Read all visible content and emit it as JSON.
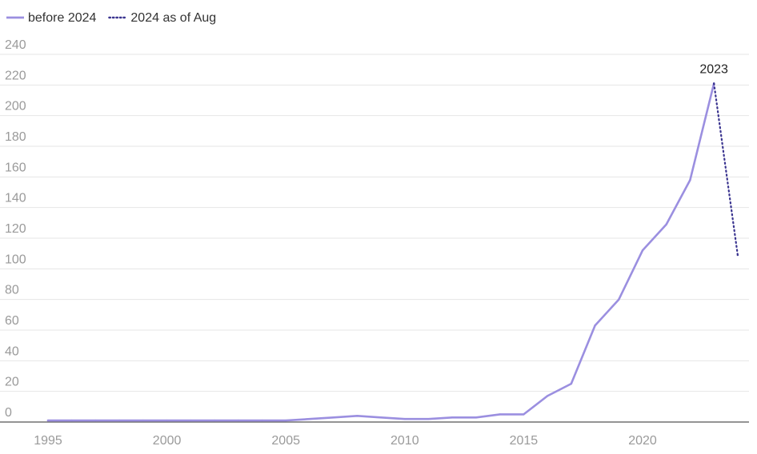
{
  "chart_data": {
    "type": "line",
    "title": "",
    "xlabel": "",
    "ylabel": "",
    "xlim": [
      1994.5,
      2024.6
    ],
    "ylim": [
      0,
      240
    ],
    "x_ticks": [
      1995,
      2000,
      2005,
      2010,
      2015,
      2020
    ],
    "y_ticks": [
      0,
      20,
      40,
      60,
      80,
      100,
      120,
      140,
      160,
      180,
      200,
      220,
      240
    ],
    "grid": true,
    "legend_position": "top-left",
    "series": [
      {
        "name": "before 2024",
        "style": "solid",
        "color": "#9b8fe0",
        "x": [
          1995,
          1996,
          1997,
          1998,
          1999,
          2000,
          2001,
          2002,
          2003,
          2004,
          2005,
          2006,
          2007,
          2008,
          2009,
          2010,
          2011,
          2012,
          2013,
          2014,
          2015,
          2016,
          2017,
          2018,
          2019,
          2020,
          2021,
          2022,
          2023
        ],
        "y": [
          1,
          1,
          1,
          1,
          1,
          1,
          1,
          1,
          1,
          1,
          1,
          2,
          3,
          4,
          3,
          2,
          2,
          3,
          3,
          5,
          5,
          17,
          25,
          63,
          80,
          112,
          129,
          158,
          221
        ]
      },
      {
        "name": "2024 as of Aug",
        "style": "dotted",
        "color": "#3b3590",
        "x": [
          2023,
          2024
        ],
        "y": [
          221,
          109
        ]
      }
    ],
    "annotations": [
      {
        "text": "2023",
        "x": 2023,
        "y": 221
      }
    ]
  }
}
